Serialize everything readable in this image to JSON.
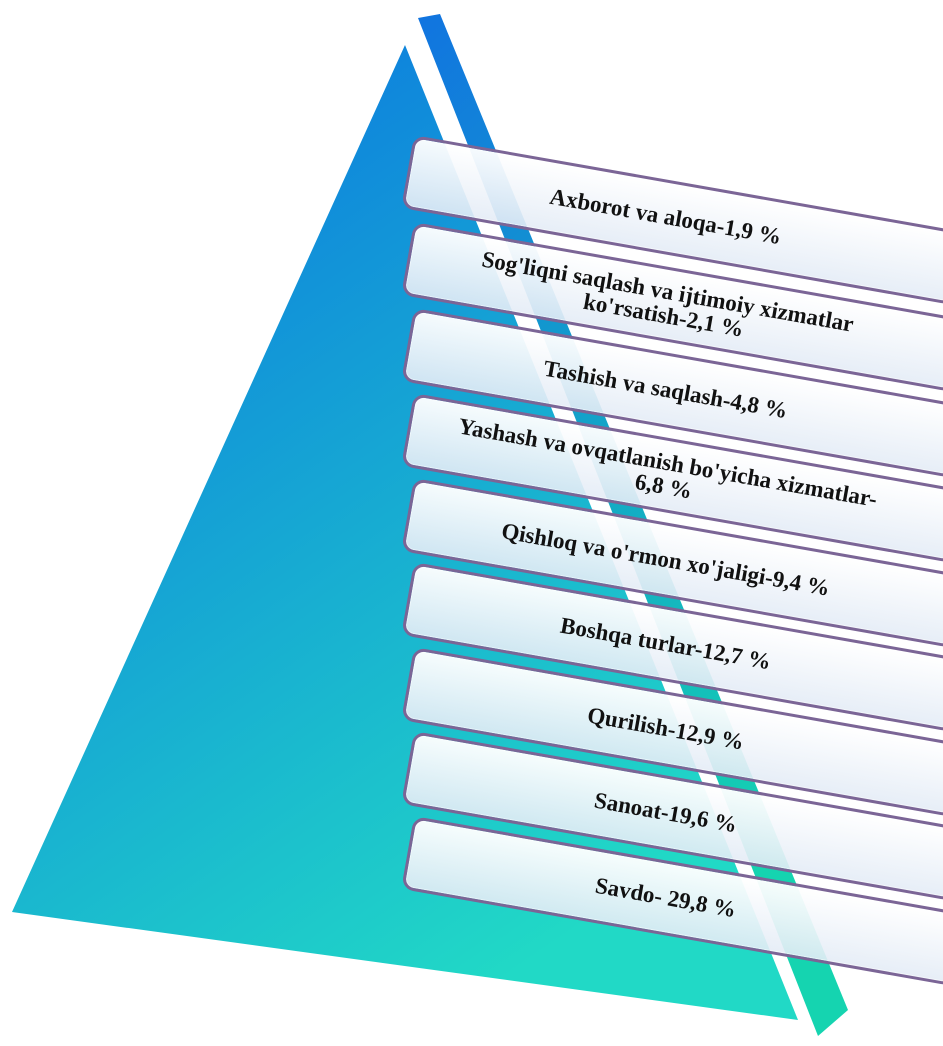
{
  "diagram": {
    "colors": {
      "pyramid_top": "#0a6fe2",
      "pyramid_bottom": "#21d9c6",
      "tier_border": "#7b6596",
      "tier_fill": "#eef3fa",
      "text": "#111111"
    },
    "tiers": [
      {
        "label": "Axborot va aloqa-1,9 %"
      },
      {
        "label": "Sog'liqni saqlash va ijtimoiy xizmatlar\nko'rsatish-2,1 %"
      },
      {
        "label": "Tashish va saqlash-4,8 %"
      },
      {
        "label": "Yashash va ovqatlanish bo'yicha xizmatlar-\n6,8 %"
      },
      {
        "label": "Qishloq va o'rmon xo'jaligi-9,4 %"
      },
      {
        "label": "Boshqa turlar-12,7 %"
      },
      {
        "label": "Qurilish-12,9 %"
      },
      {
        "label": "Sanoat-19,6 %"
      },
      {
        "label": "Savdo-  29,8 %"
      }
    ]
  }
}
